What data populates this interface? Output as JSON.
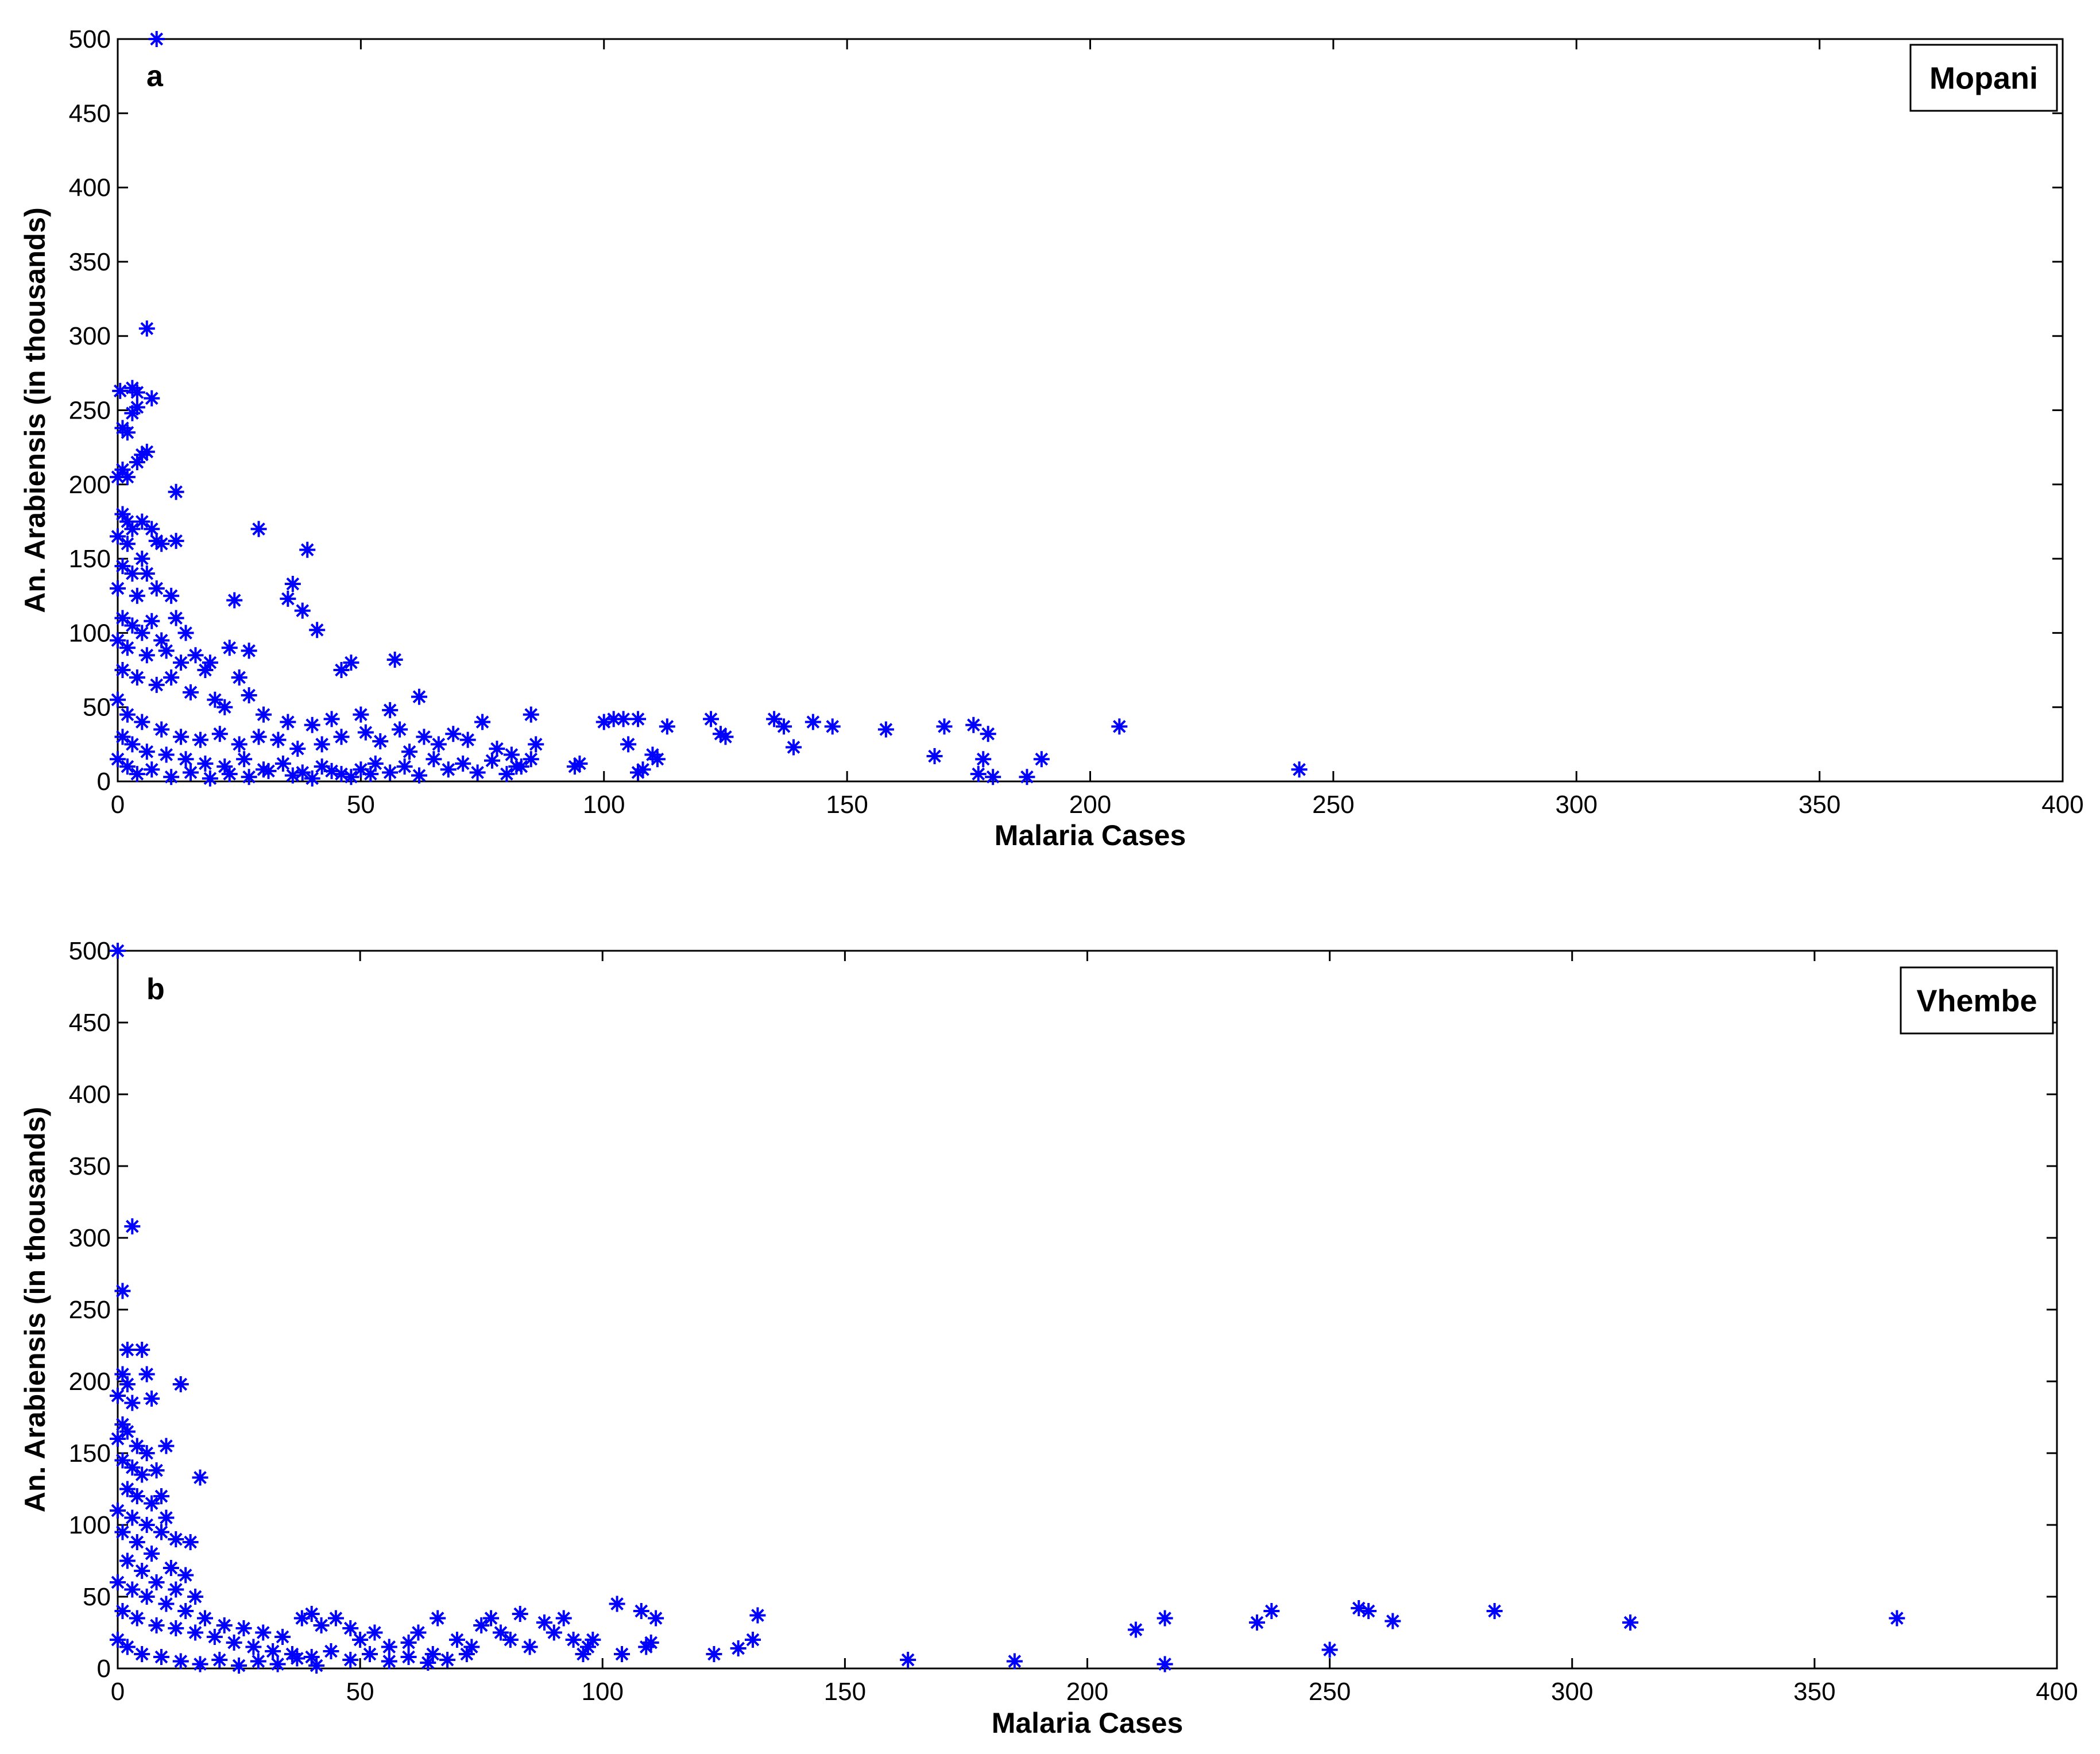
{
  "chart_data": [
    {
      "type": "scatter",
      "panel_label": "a",
      "legend": "Mopani",
      "legend_placement": "top-right",
      "xlabel": "Malaria Cases",
      "ylabel": "An. Arabiensis (in thousands)",
      "xlim": [
        0,
        400
      ],
      "ylim": [
        0,
        500
      ],
      "xticks": [
        0,
        50,
        100,
        150,
        200,
        250,
        300,
        350,
        400
      ],
      "yticks": [
        0,
        50,
        100,
        150,
        200,
        250,
        300,
        350,
        400,
        450,
        500
      ],
      "marker": "*",
      "color": "#0000ff",
      "grid": false,
      "points": [
        [
          8,
          500
        ],
        [
          6,
          305
        ],
        [
          3,
          265
        ],
        [
          4,
          262
        ],
        [
          7,
          258
        ],
        [
          0.5,
          263
        ],
        [
          1,
          238
        ],
        [
          2,
          235
        ],
        [
          3,
          248
        ],
        [
          4,
          252
        ],
        [
          5,
          220
        ],
        [
          6,
          222
        ],
        [
          1,
          210
        ],
        [
          2,
          205
        ],
        [
          0,
          205
        ],
        [
          4,
          215
        ],
        [
          12,
          195
        ],
        [
          1,
          180
        ],
        [
          2,
          175
        ],
        [
          3,
          170
        ],
        [
          5,
          175
        ],
        [
          7,
          170
        ],
        [
          8,
          162
        ],
        [
          0,
          165
        ],
        [
          2,
          160
        ],
        [
          5,
          150
        ],
        [
          9,
          160
        ],
        [
          12,
          162
        ],
        [
          29,
          170
        ],
        [
          39,
          156
        ],
        [
          1,
          145
        ],
        [
          3,
          140
        ],
        [
          6,
          140
        ],
        [
          0,
          130
        ],
        [
          4,
          125
        ],
        [
          8,
          130
        ],
        [
          11,
          125
        ],
        [
          36,
          133
        ],
        [
          35,
          123
        ],
        [
          38,
          115
        ],
        [
          41,
          102
        ],
        [
          24,
          122
        ],
        [
          1,
          110
        ],
        [
          3,
          105
        ],
        [
          5,
          100
        ],
        [
          7,
          108
        ],
        [
          9,
          95
        ],
        [
          12,
          110
        ],
        [
          14,
          100
        ],
        [
          0,
          95
        ],
        [
          2,
          90
        ],
        [
          6,
          85
        ],
        [
          10,
          88
        ],
        [
          13,
          80
        ],
        [
          16,
          85
        ],
        [
          19,
          80
        ],
        [
          23,
          90
        ],
        [
          27,
          88
        ],
        [
          18,
          75
        ],
        [
          25,
          70
        ],
        [
          46,
          75
        ],
        [
          48,
          80
        ],
        [
          57,
          82
        ],
        [
          1,
          75
        ],
        [
          4,
          70
        ],
        [
          8,
          65
        ],
        [
          11,
          70
        ],
        [
          15,
          60
        ],
        [
          20,
          55
        ],
        [
          22,
          50
        ],
        [
          27,
          58
        ],
        [
          30,
          45
        ],
        [
          35,
          40
        ],
        [
          40,
          38
        ],
        [
          44,
          42
        ],
        [
          50,
          45
        ],
        [
          56,
          48
        ],
        [
          62,
          57
        ],
        [
          0,
          55
        ],
        [
          2,
          45
        ],
        [
          5,
          40
        ],
        [
          9,
          35
        ],
        [
          13,
          30
        ],
        [
          17,
          28
        ],
        [
          21,
          32
        ],
        [
          25,
          25
        ],
        [
          29,
          30
        ],
        [
          33,
          28
        ],
        [
          37,
          22
        ],
        [
          42,
          25
        ],
        [
          46,
          30
        ],
        [
          51,
          33
        ],
        [
          54,
          27
        ],
        [
          58,
          35
        ],
        [
          60,
          20
        ],
        [
          63,
          30
        ],
        [
          66,
          25
        ],
        [
          69,
          32
        ],
        [
          72,
          28
        ],
        [
          75,
          40
        ],
        [
          78,
          22
        ],
        [
          81,
          18
        ],
        [
          85,
          45
        ],
        [
          86,
          25
        ],
        [
          85,
          15
        ],
        [
          82,
          10
        ],
        [
          1,
          30
        ],
        [
          3,
          25
        ],
        [
          6,
          20
        ],
        [
          10,
          18
        ],
        [
          14,
          15
        ],
        [
          18,
          12
        ],
        [
          22,
          10
        ],
        [
          26,
          15
        ],
        [
          30,
          8
        ],
        [
          34,
          12
        ],
        [
          38,
          6
        ],
        [
          42,
          10
        ],
        [
          46,
          5
        ],
        [
          50,
          8
        ],
        [
          53,
          12
        ],
        [
          56,
          6
        ],
        [
          59,
          10
        ],
        [
          62,
          4
        ],
        [
          65,
          15
        ],
        [
          68,
          8
        ],
        [
          71,
          12
        ],
        [
          74,
          6
        ],
        [
          77,
          14
        ],
        [
          80,
          5
        ],
        [
          83,
          10
        ],
        [
          0,
          15
        ],
        [
          2,
          10
        ],
        [
          4,
          5
        ],
        [
          7,
          8
        ],
        [
          11,
          3
        ],
        [
          15,
          6
        ],
        [
          19,
          2
        ],
        [
          23,
          5
        ],
        [
          27,
          3
        ],
        [
          31,
          7
        ],
        [
          36,
          4
        ],
        [
          40,
          2
        ],
        [
          44,
          7
        ],
        [
          48,
          3
        ],
        [
          52,
          5
        ],
        [
          95,
          12
        ],
        [
          94,
          10
        ],
        [
          100,
          40
        ],
        [
          102,
          42
        ],
        [
          104,
          42
        ],
        [
          107,
          42
        ],
        [
          105,
          25
        ],
        [
          107,
          6
        ],
        [
          108,
          8
        ],
        [
          110,
          18
        ],
        [
          111,
          15
        ],
        [
          113,
          37
        ],
        [
          122,
          42
        ],
        [
          124,
          32
        ],
        [
          125,
          30
        ],
        [
          135,
          42
        ],
        [
          137,
          37
        ],
        [
          139,
          23
        ],
        [
          143,
          40
        ],
        [
          147,
          37
        ],
        [
          158,
          35
        ],
        [
          168,
          17
        ],
        [
          170,
          37
        ],
        [
          176,
          38
        ],
        [
          178,
          15
        ],
        [
          179,
          32
        ],
        [
          177,
          5
        ],
        [
          180,
          3
        ],
        [
          187,
          3
        ],
        [
          190,
          15
        ],
        [
          206,
          37
        ],
        [
          243,
          8
        ]
      ]
    },
    {
      "type": "scatter",
      "panel_label": "b",
      "legend": "Vhembe",
      "legend_placement": "top-right",
      "xlabel": "Malaria Cases",
      "ylabel": "An. Arabiensis (in thousands)",
      "xlim": [
        0,
        400
      ],
      "ylim": [
        0,
        500
      ],
      "xticks": [
        0,
        50,
        100,
        150,
        200,
        250,
        300,
        350,
        400
      ],
      "yticks": [
        0,
        50,
        100,
        150,
        200,
        250,
        300,
        350,
        400,
        450,
        500
      ],
      "marker": "*",
      "color": "#0000ff",
      "grid": false,
      "points": [
        [
          0,
          500
        ],
        [
          3,
          308
        ],
        [
          1,
          263
        ],
        [
          2,
          222
        ],
        [
          5,
          222
        ],
        [
          1,
          205
        ],
        [
          6,
          205
        ],
        [
          2,
          198
        ],
        [
          7,
          188
        ],
        [
          13,
          198
        ],
        [
          0,
          190
        ],
        [
          3,
          185
        ],
        [
          1,
          170
        ],
        [
          0,
          160
        ],
        [
          2,
          165
        ],
        [
          4,
          155
        ],
        [
          6,
          150
        ],
        [
          10,
          155
        ],
        [
          17,
          133
        ],
        [
          1,
          145
        ],
        [
          3,
          140
        ],
        [
          5,
          135
        ],
        [
          8,
          138
        ],
        [
          2,
          125
        ],
        [
          4,
          120
        ],
        [
          7,
          115
        ],
        [
          9,
          120
        ],
        [
          0,
          110
        ],
        [
          3,
          105
        ],
        [
          6,
          100
        ],
        [
          9,
          95
        ],
        [
          10,
          105
        ],
        [
          12,
          90
        ],
        [
          15,
          88
        ],
        [
          1,
          95
        ],
        [
          4,
          88
        ],
        [
          7,
          80
        ],
        [
          11,
          70
        ],
        [
          14,
          65
        ],
        [
          2,
          75
        ],
        [
          5,
          68
        ],
        [
          8,
          60
        ],
        [
          12,
          55
        ],
        [
          16,
          50
        ],
        [
          0,
          60
        ],
        [
          3,
          55
        ],
        [
          6,
          50
        ],
        [
          10,
          45
        ],
        [
          14,
          40
        ],
        [
          18,
          35
        ],
        [
          22,
          30
        ],
        [
          26,
          28
        ],
        [
          30,
          25
        ],
        [
          34,
          22
        ],
        [
          38,
          35
        ],
        [
          40,
          38
        ],
        [
          42,
          30
        ],
        [
          45,
          35
        ],
        [
          48,
          28
        ],
        [
          50,
          20
        ],
        [
          53,
          25
        ],
        [
          56,
          15
        ],
        [
          60,
          18
        ],
        [
          62,
          25
        ],
        [
          65,
          10
        ],
        [
          66,
          35
        ],
        [
          70,
          20
        ],
        [
          73,
          15
        ],
        [
          75,
          30
        ],
        [
          77,
          35
        ],
        [
          79,
          25
        ],
        [
          81,
          20
        ],
        [
          83,
          38
        ],
        [
          85,
          15
        ],
        [
          88,
          32
        ],
        [
          90,
          25
        ],
        [
          92,
          35
        ],
        [
          94,
          20
        ],
        [
          96,
          10
        ],
        [
          97,
          15
        ],
        [
          98,
          20
        ],
        [
          103,
          45
        ],
        [
          104,
          10
        ],
        [
          108,
          40
        ],
        [
          109,
          15
        ],
        [
          110,
          18
        ],
        [
          111,
          35
        ],
        [
          1,
          40
        ],
        [
          4,
          35
        ],
        [
          8,
          30
        ],
        [
          12,
          28
        ],
        [
          16,
          25
        ],
        [
          20,
          22
        ],
        [
          24,
          18
        ],
        [
          28,
          15
        ],
        [
          32,
          12
        ],
        [
          36,
          10
        ],
        [
          40,
          8
        ],
        [
          44,
          12
        ],
        [
          48,
          6
        ],
        [
          52,
          10
        ],
        [
          56,
          5
        ],
        [
          60,
          8
        ],
        [
          64,
          4
        ],
        [
          68,
          6
        ],
        [
          72,
          10
        ],
        [
          0,
          20
        ],
        [
          2,
          15
        ],
        [
          5,
          10
        ],
        [
          9,
          8
        ],
        [
          13,
          5
        ],
        [
          17,
          3
        ],
        [
          21,
          6
        ],
        [
          25,
          2
        ],
        [
          29,
          5
        ],
        [
          33,
          3
        ],
        [
          37,
          7
        ],
        [
          41,
          2
        ],
        [
          123,
          10
        ],
        [
          128,
          14
        ],
        [
          131,
          20
        ],
        [
          132,
          37
        ],
        [
          163,
          6
        ],
        [
          185,
          5
        ],
        [
          210,
          27
        ],
        [
          216,
          35
        ],
        [
          216,
          3
        ],
        [
          235,
          32
        ],
        [
          238,
          40
        ],
        [
          250,
          13
        ],
        [
          256,
          42
        ],
        [
          258,
          40
        ],
        [
          263,
          33
        ],
        [
          284,
          40
        ],
        [
          312,
          32
        ],
        [
          367,
          35
        ]
      ]
    }
  ]
}
